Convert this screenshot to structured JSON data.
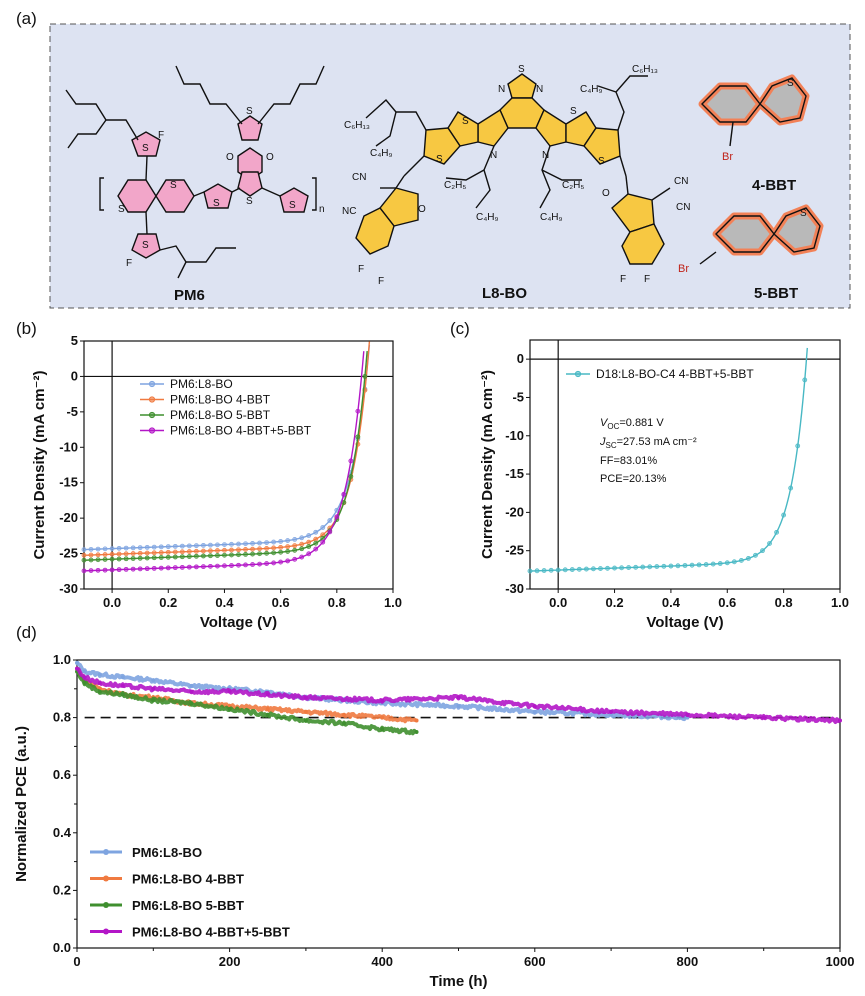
{
  "panels": {
    "a": "(a)",
    "b": "(b)",
    "c": "(c)",
    "d": "(d)"
  },
  "molecules": {
    "pm6": "PM6",
    "l8bo": "L8-BO",
    "bbt4": "4-BBT",
    "bbt5": "5-BBT",
    "atoms": {
      "S": "S",
      "F": "F",
      "O": "O",
      "N": "N",
      "Br": "Br",
      "CN": "CN",
      "NC": "NC",
      "n": "n",
      "C6H13": "C₆H₁₃",
      "C4H9": "C₄H₉",
      "C2H5": "C₂H₅"
    }
  },
  "colors": {
    "scheme_bg": "#dde3f2",
    "aromatic_yellow": "#f7c842",
    "pink": "#f2a6c9",
    "bbt_orange": "#f28157",
    "bbt_gray": "#b9b9b9",
    "blue": "#7ea4e0",
    "orange": "#f07a40",
    "green": "#3f8f2f",
    "purple": "#b316c7",
    "teal": "#48b8c4"
  },
  "chart_data": [
    {
      "id": "b",
      "type": "line",
      "xlabel": "Voltage (V)",
      "ylabel": "Current Density (mA cm⁻²)",
      "xlim": [
        -0.1,
        1.0
      ],
      "ylim": [
        -30,
        5
      ],
      "xticks": [
        "0.0",
        "0.2",
        "0.4",
        "0.6",
        "0.8",
        "1.0"
      ],
      "yticks": [
        "5",
        "0",
        "-5",
        "-10",
        "-15",
        "-20",
        "-25",
        "-30"
      ],
      "xtick_values": [
        0,
        0.2,
        0.4,
        0.6,
        0.8,
        1.0
      ],
      "ytick_values": [
        5,
        0,
        -5,
        -10,
        -15,
        -20,
        -25,
        -30
      ],
      "legend_position": "center-left",
      "series": [
        {
          "name": "PM6:L8-BO",
          "color": "#7ea4e0",
          "jsc": 24.3,
          "slope": 1.4,
          "voc": 0.905,
          "knee": 0.78,
          "steep": 16
        },
        {
          "name": "PM6:L8-BO 4-BBT",
          "color": "#f07a40",
          "jsc": 25.1,
          "slope": 1.4,
          "voc": 0.905,
          "knee": 0.79,
          "steep": 17
        },
        {
          "name": "PM6:L8-BO 5-BBT",
          "color": "#3f8f2f",
          "jsc": 25.8,
          "slope": 1.4,
          "voc": 0.9,
          "knee": 0.79,
          "steep": 17
        },
        {
          "name": "PM6:L8-BO 4-BBT+5-BBT",
          "color": "#b316c7",
          "jsc": 27.3,
          "slope": 1.4,
          "voc": 0.888,
          "knee": 0.77,
          "steep": 16
        }
      ]
    },
    {
      "id": "c",
      "type": "line",
      "xlabel": "Voltage (V)",
      "ylabel": "Current Density (mA cm⁻²)",
      "xlim": [
        -0.1,
        1.0
      ],
      "ylim": [
        -30,
        2.5
      ],
      "xticks": [
        "0.0",
        "0.2",
        "0.4",
        "0.6",
        "0.8",
        "1.0"
      ],
      "yticks": [
        "0",
        "-5",
        "-10",
        "-15",
        "-20",
        "-25",
        "-30"
      ],
      "xtick_values": [
        0,
        0.2,
        0.4,
        0.6,
        0.8,
        1.0
      ],
      "ytick_values": [
        0,
        -5,
        -10,
        -15,
        -20,
        -25,
        -30
      ],
      "legend_position": "top-left",
      "series": [
        {
          "name": "D18:L8-BO-C4 4-BBT+5-BBT",
          "color": "#48b8c4",
          "jsc": 27.53,
          "slope": 1.3,
          "voc": 0.881,
          "knee": 0.78,
          "steep": 18
        }
      ],
      "annotations": {
        "voc_label": "V",
        "voc_sub": "OC",
        "voc_value": "=0.881 V",
        "jsc_label": "J",
        "jsc_sub": "SC",
        "jsc_value": "=27.53 mA cm⁻²",
        "ff": "FF=83.01%",
        "pce": "PCE=20.13%"
      }
    },
    {
      "id": "d",
      "type": "line",
      "xlabel": "Time (h)",
      "ylabel": "Normalized PCE (a.u.)",
      "xlim": [
        0,
        1000
      ],
      "ylim": [
        0.0,
        1.0
      ],
      "xticks": [
        "0",
        "200",
        "400",
        "600",
        "800",
        "1000"
      ],
      "yticks": [
        "0.0",
        "0.2",
        "0.4",
        "0.6",
        "0.8",
        "1.0"
      ],
      "xtick_values": [
        0,
        200,
        400,
        600,
        800,
        1000
      ],
      "ytick_values": [
        0,
        0.2,
        0.4,
        0.6,
        0.8,
        1.0
      ],
      "reference_line": 0.8,
      "legend_position": "bottom-left",
      "series": [
        {
          "name": "PM6:L8-BO",
          "color": "#7ea4e0",
          "x": [
            0,
            10,
            30,
            60,
            100,
            150,
            200,
            250,
            300,
            400,
            500,
            600,
            700,
            800
          ],
          "y": [
            0.99,
            0.96,
            0.95,
            0.94,
            0.93,
            0.91,
            0.9,
            0.89,
            0.87,
            0.85,
            0.84,
            0.82,
            0.81,
            0.8
          ]
        },
        {
          "name": "PM6:L8-BO 4-BBT",
          "color": "#f07a40",
          "x": [
            0,
            10,
            30,
            60,
            100,
            150,
            200,
            250,
            300,
            350,
            400,
            445
          ],
          "y": [
            0.97,
            0.93,
            0.9,
            0.88,
            0.87,
            0.85,
            0.84,
            0.83,
            0.82,
            0.81,
            0.8,
            0.79
          ]
        },
        {
          "name": "PM6:L8-BO 5-BBT",
          "color": "#3f8f2f",
          "x": [
            0,
            10,
            30,
            60,
            100,
            150,
            200,
            250,
            300,
            350,
            400,
            445
          ],
          "y": [
            0.96,
            0.92,
            0.89,
            0.88,
            0.86,
            0.85,
            0.83,
            0.81,
            0.79,
            0.78,
            0.76,
            0.75
          ]
        },
        {
          "name": "PM6:L8-BO 4-BBT+5-BBT",
          "color": "#b316c7",
          "x": [
            0,
            10,
            30,
            60,
            100,
            150,
            200,
            250,
            300,
            400,
            500,
            600,
            700,
            800,
            900,
            1000
          ],
          "y": [
            0.97,
            0.94,
            0.92,
            0.91,
            0.9,
            0.89,
            0.89,
            0.88,
            0.87,
            0.86,
            0.87,
            0.84,
            0.82,
            0.81,
            0.8,
            0.79
          ]
        }
      ]
    }
  ]
}
